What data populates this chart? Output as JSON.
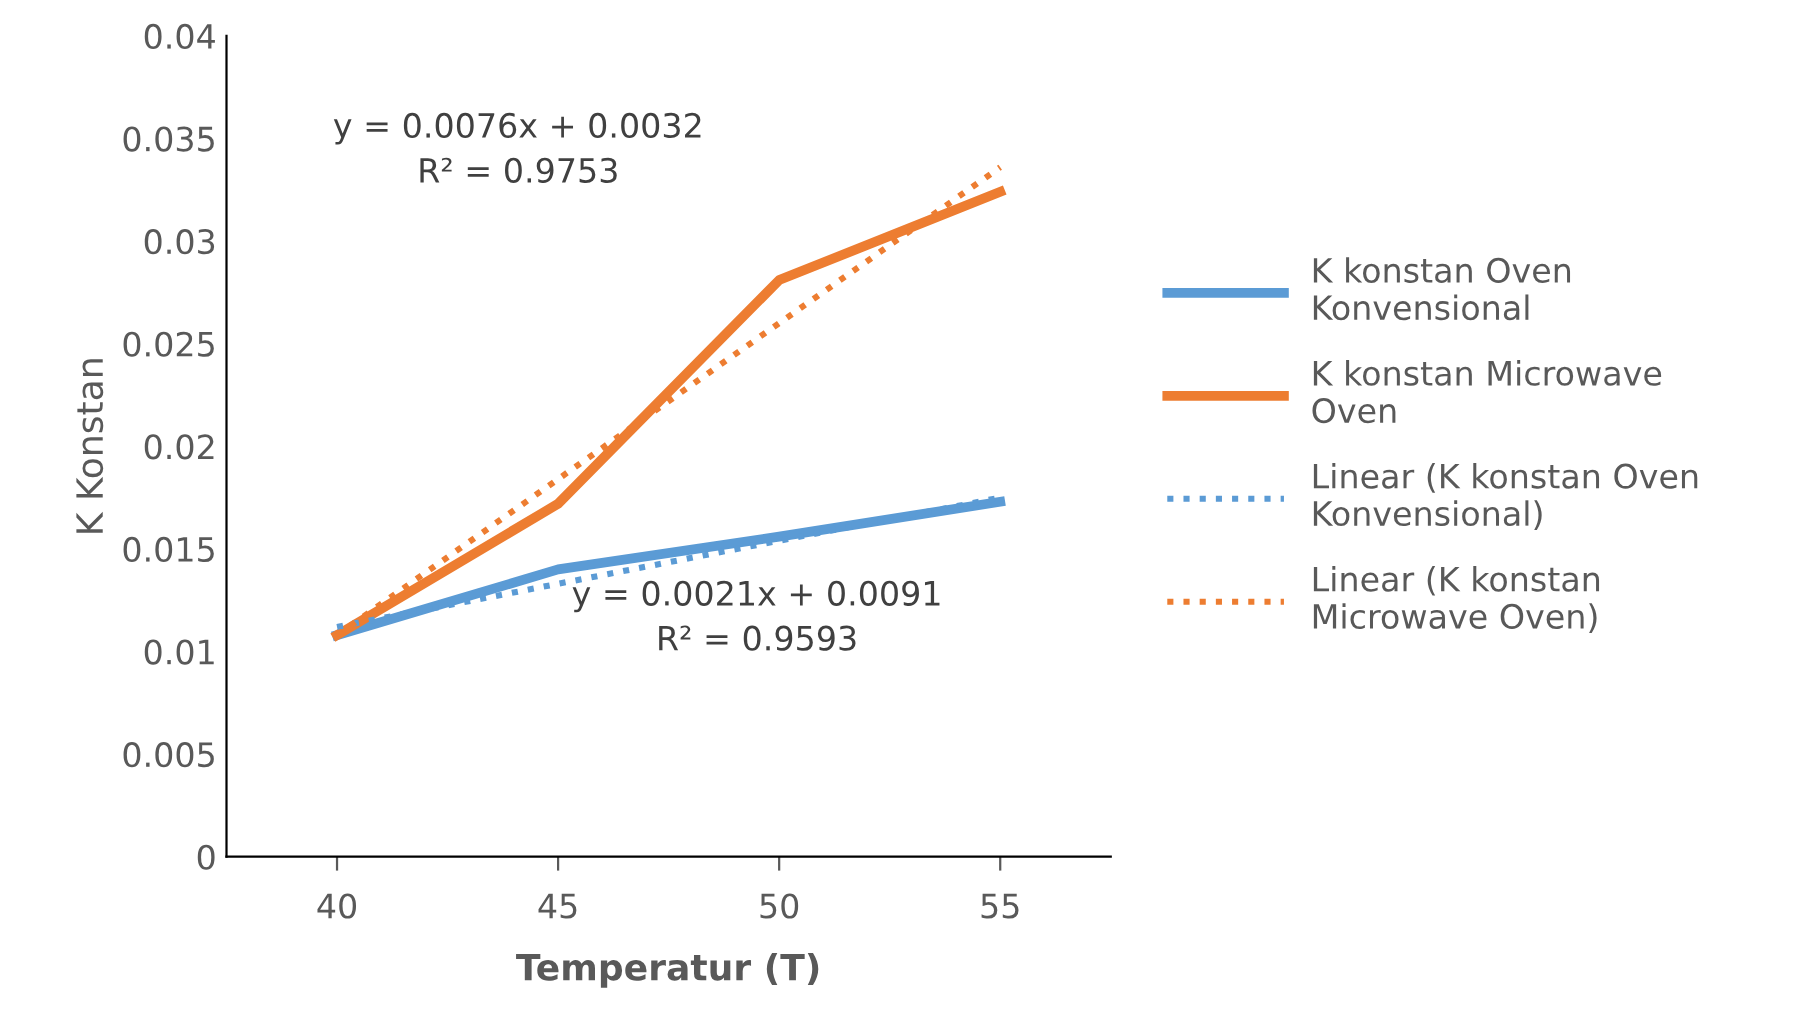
{
  "chart_data": {
    "type": "line",
    "xlabel": "Temperatur (T)",
    "ylabel": "K Konstan",
    "categories": [
      "40",
      "45",
      "50",
      "55"
    ],
    "series": [
      {
        "name": "K konstan Oven Konvensional",
        "color": "#5b9bd5",
        "values": [
          0.0108,
          0.014,
          0.0156,
          0.0173
        ],
        "line_style": "solid"
      },
      {
        "name": "K konstan Microwave Oven",
        "color": "#ed7d31",
        "values": [
          0.0108,
          0.0172,
          0.0281,
          0.0324
        ],
        "line_style": "solid"
      },
      {
        "name": "Linear (K konstan Oven Konvensional)",
        "color": "#5b9bd5",
        "values": [
          0.0112,
          0.0133,
          0.0154,
          0.0175
        ],
        "line_style": "dotted"
      },
      {
        "name": "Linear (K konstan Microwave Oven)",
        "color": "#ed7d31",
        "values": [
          0.0108,
          0.0184,
          0.026,
          0.0336
        ],
        "line_style": "dotted"
      }
    ],
    "annotations": [
      "y = 0.0076x + 0.0032\nR² = 0.9753",
      "y = 0.0021x + 0.0091\nR² = 0.9593"
    ],
    "ylim": [
      0,
      0.04
    ],
    "yticks": [
      0,
      0.005,
      0.01,
      0.015,
      0.02,
      0.025,
      0.03,
      0.035,
      0.04
    ],
    "grid": false,
    "legend": "right",
    "marker": "none"
  }
}
